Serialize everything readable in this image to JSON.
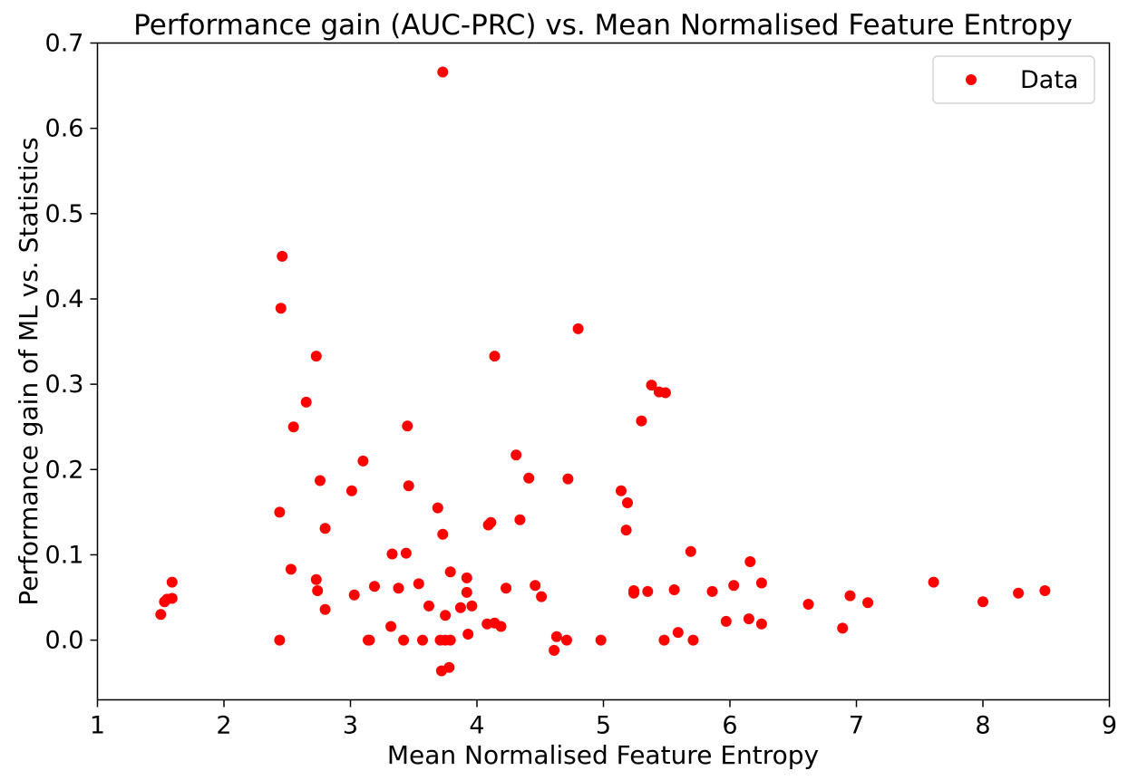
{
  "chart_data": {
    "type": "scatter",
    "title": "Performance gain (AUC-PRC) vs. Mean Normalised Feature Entropy",
    "xlabel": "Mean Normalised Feature Entropy",
    "ylabel": "Performance gain of ML vs. Statistics",
    "xlim": [
      1,
      9
    ],
    "ylim": [
      -0.07,
      0.7
    ],
    "xticks": [
      1,
      2,
      3,
      4,
      5,
      6,
      7,
      8,
      9
    ],
    "yticks": [
      0.0,
      0.1,
      0.2,
      0.3,
      0.4,
      0.5,
      0.6,
      0.7
    ],
    "ytick_labels": [
      "0.0",
      "0.1",
      "0.2",
      "0.3",
      "0.4",
      "0.5",
      "0.6",
      "0.7"
    ],
    "grid": false,
    "legend": {
      "position": "top-right",
      "entries": [
        "Data"
      ]
    },
    "series": [
      {
        "name": "Data",
        "color": "#ff0000",
        "marker": "circle",
        "points": [
          [
            1.5,
            0.03
          ],
          [
            1.53,
            0.045
          ],
          [
            1.55,
            0.048
          ],
          [
            1.59,
            0.068
          ],
          [
            1.59,
            0.049
          ],
          [
            2.44,
            0.15
          ],
          [
            2.45,
            0.389
          ],
          [
            2.46,
            0.45
          ],
          [
            2.44,
            0.0
          ],
          [
            2.53,
            0.083
          ],
          [
            2.55,
            0.25
          ],
          [
            2.65,
            0.279
          ],
          [
            2.73,
            0.333
          ],
          [
            2.73,
            0.071
          ],
          [
            2.74,
            0.058
          ],
          [
            2.76,
            0.187
          ],
          [
            2.8,
            0.131
          ],
          [
            2.8,
            0.036
          ],
          [
            3.01,
            0.175
          ],
          [
            3.03,
            0.053
          ],
          [
            3.1,
            0.21
          ],
          [
            3.14,
            0.0
          ],
          [
            3.15,
            0.0
          ],
          [
            3.19,
            0.063
          ],
          [
            3.32,
            0.016
          ],
          [
            3.33,
            0.101
          ],
          [
            3.38,
            0.061
          ],
          [
            3.42,
            0.0
          ],
          [
            3.44,
            0.102
          ],
          [
            3.45,
            0.251
          ],
          [
            3.46,
            0.181
          ],
          [
            3.54,
            0.066
          ],
          [
            3.57,
            0.0
          ],
          [
            3.62,
            0.04
          ],
          [
            3.69,
            0.155
          ],
          [
            3.71,
            0.0
          ],
          [
            3.72,
            -0.036
          ],
          [
            3.73,
            0.124
          ],
          [
            3.73,
            0.666
          ],
          [
            3.75,
            0.029
          ],
          [
            3.75,
            0.0
          ],
          [
            3.78,
            -0.032
          ],
          [
            3.79,
            0.08
          ],
          [
            3.79,
            0.0
          ],
          [
            3.87,
            0.038
          ],
          [
            3.92,
            0.073
          ],
          [
            3.92,
            0.056
          ],
          [
            3.93,
            0.007
          ],
          [
            3.96,
            0.04
          ],
          [
            4.08,
            0.019
          ],
          [
            4.09,
            0.135
          ],
          [
            4.11,
            0.138
          ],
          [
            4.14,
            0.02
          ],
          [
            4.14,
            0.333
          ],
          [
            4.19,
            0.016
          ],
          [
            4.23,
            0.061
          ],
          [
            4.31,
            0.217
          ],
          [
            4.34,
            0.141
          ],
          [
            4.41,
            0.19
          ],
          [
            4.46,
            0.064
          ],
          [
            4.51,
            0.051
          ],
          [
            4.61,
            -0.012
          ],
          [
            4.63,
            0.004
          ],
          [
            4.71,
            0.0
          ],
          [
            4.72,
            0.189
          ],
          [
            4.8,
            0.365
          ],
          [
            4.98,
            0.0
          ],
          [
            5.14,
            0.175
          ],
          [
            5.18,
            0.129
          ],
          [
            5.19,
            0.161
          ],
          [
            5.24,
            0.058
          ],
          [
            5.24,
            0.055
          ],
          [
            5.3,
            0.257
          ],
          [
            5.35,
            0.057
          ],
          [
            5.38,
            0.299
          ],
          [
            5.44,
            0.291
          ],
          [
            5.48,
            0.0
          ],
          [
            5.49,
            0.29
          ],
          [
            5.56,
            0.059
          ],
          [
            5.59,
            0.009
          ],
          [
            5.69,
            0.104
          ],
          [
            5.71,
            0.0
          ],
          [
            5.86,
            0.057
          ],
          [
            5.97,
            0.022
          ],
          [
            6.03,
            0.064
          ],
          [
            6.15,
            0.025
          ],
          [
            6.16,
            0.092
          ],
          [
            6.25,
            0.067
          ],
          [
            6.25,
            0.019
          ],
          [
            6.62,
            0.042
          ],
          [
            6.89,
            0.014
          ],
          [
            6.95,
            0.052
          ],
          [
            7.09,
            0.044
          ],
          [
            7.61,
            0.068
          ],
          [
            8.0,
            0.045
          ],
          [
            8.28,
            0.055
          ],
          [
            8.49,
            0.058
          ]
        ]
      }
    ]
  }
}
